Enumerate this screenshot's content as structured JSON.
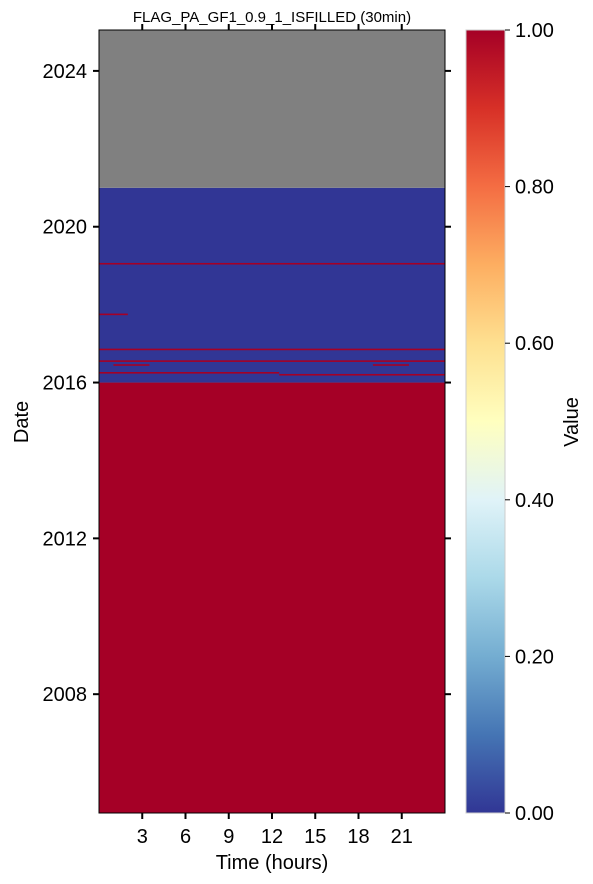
{
  "chart_data": {
    "type": "heatmap",
    "title": "FLAG_PA_GF1_0.9_1_ISFILLED (30min)",
    "xlabel": "Time (hours)",
    "ylabel": "Date",
    "xlim": [
      0,
      24
    ],
    "ylim": [
      2004.95,
      2025.05
    ],
    "x_ticks": [
      3,
      6,
      9,
      12,
      15,
      18,
      21
    ],
    "x_tick_labels": [
      "3",
      "6",
      "9",
      "12",
      "15",
      "18",
      "21"
    ],
    "y_ticks": [
      2008,
      2012,
      2016,
      2020,
      2024
    ],
    "y_tick_labels": [
      "2008",
      "2012",
      "2016",
      "2020",
      "2024"
    ],
    "colorbar": {
      "label": "Value",
      "colormap": "RdYlBu_r",
      "range": [
        0,
        1
      ],
      "ticks": [
        0,
        0.2,
        0.4,
        0.6,
        0.8,
        1.0
      ],
      "tick_labels": [
        "0.00",
        "0.20",
        "0.40",
        "0.60",
        "0.80",
        "1.00"
      ]
    },
    "colors": {
      "value_0": "#313695",
      "value_1": "#a50026",
      "missing": "#808080"
    },
    "regions": [
      {
        "from": 2004.95,
        "to": 2016.0,
        "value": 1
      },
      {
        "from": 2016.0,
        "to": 2021.0,
        "value": 0
      },
      {
        "from": 2021.0,
        "to": 2025.05,
        "value": null
      }
    ],
    "filled_gaps": [
      {
        "date": 2019.05,
        "x0": 0,
        "x1": 24
      },
      {
        "date": 2017.75,
        "x0": 0,
        "x1": 2
      },
      {
        "date": 2016.85,
        "x0": 0,
        "x1": 24
      },
      {
        "date": 2016.55,
        "x0": 0,
        "x1": 24
      },
      {
        "date": 2016.45,
        "x0": 1,
        "x1": 3.5
      },
      {
        "date": 2016.45,
        "x0": 19,
        "x1": 21.5
      },
      {
        "date": 2016.25,
        "x0": 0,
        "x1": 12.5
      },
      {
        "date": 2016.2,
        "x0": 12.5,
        "x1": 24
      }
    ]
  }
}
